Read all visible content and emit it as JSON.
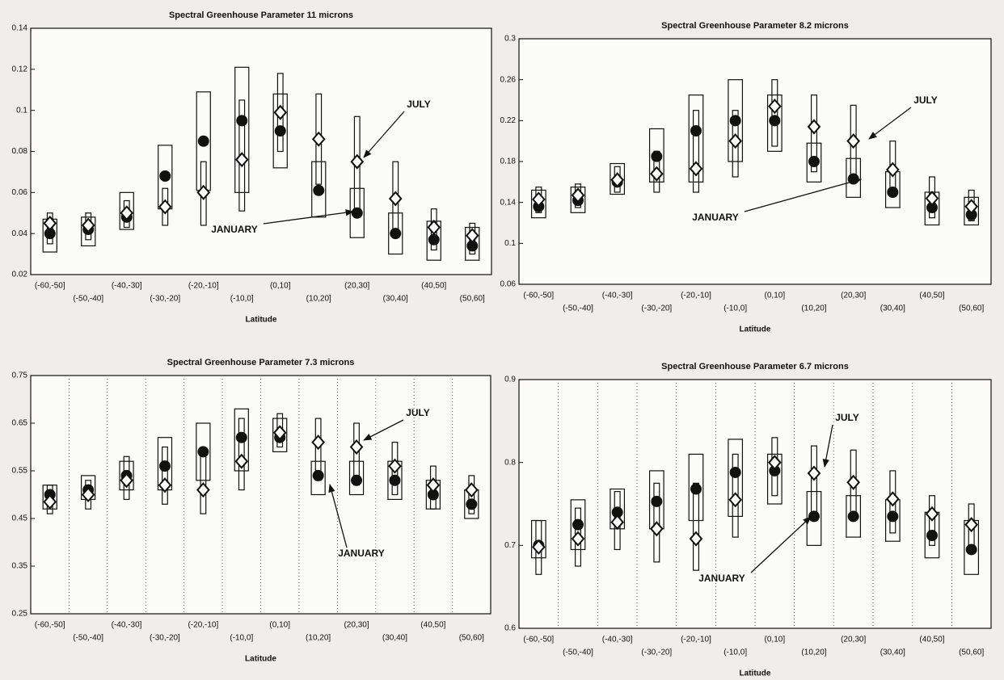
{
  "chart_data": [
    {
      "type": "box",
      "title": "Spectral Greenhouse Parameter 11 microns",
      "xlabel": "Latitude",
      "categories": [
        "(-60,-50]",
        "(-50,-40]",
        "(-40,-30]",
        "(-30,-20]",
        "(-20,-10]",
        "(-10,0]",
        "(0,10]",
        "(10,20]",
        "(20,30]",
        "(30,40]",
        "(40,50]",
        "(50,60]"
      ],
      "ylim": [
        0.02,
        0.14
      ],
      "yticks": [
        0.02,
        0.04,
        0.06,
        0.08,
        0.1,
        0.12,
        0.14
      ],
      "grid": false,
      "series": [
        {
          "name": "JANUARY",
          "color": "#111111",
          "marker": "circle",
          "values": [
            0.04,
            0.042,
            0.048,
            0.068,
            0.085,
            0.095,
            0.09,
            0.061,
            0.05,
            0.04,
            0.037,
            0.034
          ],
          "low": [
            0.031,
            0.034,
            0.042,
            0.052,
            0.061,
            0.06,
            0.072,
            0.048,
            0.038,
            0.03,
            0.027,
            0.027
          ],
          "high": [
            0.047,
            0.048,
            0.06,
            0.083,
            0.109,
            0.121,
            0.108,
            0.075,
            0.062,
            0.05,
            0.046,
            0.043
          ]
        },
        {
          "name": "JULY",
          "color": "#ffffff",
          "marker": "diamond",
          "values": [
            0.045,
            0.044,
            0.05,
            0.053,
            0.06,
            0.076,
            0.099,
            0.086,
            0.075,
            0.057,
            0.043,
            0.039
          ],
          "low": [
            0.035,
            0.037,
            0.043,
            0.044,
            0.044,
            0.051,
            0.08,
            0.064,
            0.05,
            0.038,
            0.032,
            0.03
          ],
          "high": [
            0.05,
            0.05,
            0.056,
            0.062,
            0.075,
            0.105,
            0.118,
            0.108,
            0.097,
            0.075,
            0.052,
            0.045
          ]
        }
      ]
    },
    {
      "type": "box",
      "title": "Spectral Greenhouse Parameter 8.2 microns",
      "xlabel": "Latitude",
      "categories": [
        "(-60,-50]",
        "(-50,-40]",
        "(-40,-30]",
        "(-30,-20]",
        "(-20,-10]",
        "(-10,0]",
        "(0,10]",
        "(10,20]",
        "(20,30]",
        "(30,40]",
        "(40,50]",
        "(50,60]"
      ],
      "ylim": [
        0.06,
        0.3
      ],
      "yticks": [
        0.06,
        0.1,
        0.14,
        0.18,
        0.22,
        0.26,
        0.3
      ],
      "grid": false,
      "series": [
        {
          "name": "JANUARY",
          "color": "#111111",
          "marker": "circle",
          "values": [
            0.136,
            0.142,
            0.16,
            0.185,
            0.21,
            0.22,
            0.22,
            0.18,
            0.163,
            0.15,
            0.135,
            0.128
          ],
          "low": [
            0.125,
            0.13,
            0.148,
            0.16,
            0.16,
            0.18,
            0.19,
            0.16,
            0.145,
            0.135,
            0.118,
            0.118
          ],
          "high": [
            0.152,
            0.155,
            0.178,
            0.212,
            0.245,
            0.26,
            0.245,
            0.198,
            0.183,
            0.17,
            0.15,
            0.145
          ]
        },
        {
          "name": "JULY",
          "color": "#ffffff",
          "marker": "diamond",
          "values": [
            0.143,
            0.147,
            0.162,
            0.168,
            0.173,
            0.2,
            0.234,
            0.214,
            0.2,
            0.172,
            0.144,
            0.136
          ],
          "low": [
            0.13,
            0.135,
            0.15,
            0.15,
            0.15,
            0.165,
            0.195,
            0.17,
            0.16,
            0.15,
            0.125,
            0.122
          ],
          "high": [
            0.155,
            0.158,
            0.175,
            0.19,
            0.23,
            0.23,
            0.26,
            0.245,
            0.235,
            0.2,
            0.165,
            0.152
          ]
        }
      ]
    },
    {
      "type": "box",
      "title": "Spectral Greenhouse Parameter 7.3 microns",
      "xlabel": "Latitude",
      "categories": [
        "(-60,-50]",
        "(-50,-40]",
        "(-40,-30]",
        "(-30,-20]",
        "(-20,-10]",
        "(-10,0]",
        "(0,10]",
        "(10,20]",
        "(20,30]",
        "(30,40]",
        "(40,50]",
        "(50,60]"
      ],
      "ylim": [
        0.25,
        0.75
      ],
      "yticks": [
        0.25,
        0.35,
        0.45,
        0.55,
        0.65,
        0.75
      ],
      "grid": true,
      "series": [
        {
          "name": "JANUARY",
          "color": "#111111",
          "marker": "circle",
          "values": [
            0.5,
            0.51,
            0.54,
            0.56,
            0.59,
            0.62,
            0.62,
            0.54,
            0.53,
            0.53,
            0.5,
            0.48
          ],
          "low": [
            0.47,
            0.49,
            0.51,
            0.51,
            0.53,
            0.55,
            0.59,
            0.5,
            0.5,
            0.49,
            0.47,
            0.45
          ],
          "high": [
            0.52,
            0.54,
            0.57,
            0.62,
            0.65,
            0.68,
            0.66,
            0.57,
            0.57,
            0.57,
            0.53,
            0.51
          ]
        },
        {
          "name": "JULY",
          "color": "#ffffff",
          "marker": "diamond",
          "values": [
            0.485,
            0.5,
            0.53,
            0.52,
            0.51,
            0.57,
            0.63,
            0.61,
            0.6,
            0.56,
            0.52,
            0.51
          ],
          "low": [
            0.46,
            0.47,
            0.49,
            0.48,
            0.46,
            0.51,
            0.6,
            0.53,
            0.52,
            0.5,
            0.47,
            0.46
          ],
          "high": [
            0.52,
            0.53,
            0.58,
            0.6,
            0.59,
            0.66,
            0.67,
            0.66,
            0.65,
            0.61,
            0.56,
            0.54
          ]
        }
      ]
    },
    {
      "type": "box",
      "title": "Spectral Greenhouse Parameter 6.7 microns",
      "xlabel": "Latitude",
      "categories": [
        "(-60,-50]",
        "(-50,-40]",
        "(-40,-30]",
        "(-30,-20]",
        "(-20,-10]",
        "(-10,0]",
        "(0,10]",
        "(10,20]",
        "(20,30]",
        "(30,40]",
        "(40,50]",
        "(50,60]"
      ],
      "ylim": [
        0.6,
        0.9
      ],
      "yticks": [
        0.6,
        0.7,
        0.8,
        0.9
      ],
      "grid": true,
      "series": [
        {
          "name": "JANUARY",
          "color": "#111111",
          "marker": "circle",
          "values": [
            0.7,
            0.725,
            0.74,
            0.753,
            0.768,
            0.788,
            0.79,
            0.735,
            0.735,
            0.735,
            0.712,
            0.695
          ],
          "low": [
            0.685,
            0.695,
            0.72,
            0.72,
            0.73,
            0.735,
            0.75,
            0.7,
            0.71,
            0.705,
            0.685,
            0.665
          ],
          "high": [
            0.73,
            0.755,
            0.768,
            0.79,
            0.81,
            0.828,
            0.81,
            0.765,
            0.76,
            0.755,
            0.74,
            0.73
          ]
        },
        {
          "name": "JULY",
          "color": "#ffffff",
          "marker": "diamond",
          "values": [
            0.698,
            0.708,
            0.728,
            0.72,
            0.708,
            0.755,
            0.8,
            0.787,
            0.776,
            0.756,
            0.738,
            0.725
          ],
          "low": [
            0.665,
            0.675,
            0.695,
            0.68,
            0.67,
            0.71,
            0.76,
            0.735,
            0.735,
            0.715,
            0.7,
            0.69
          ],
          "high": [
            0.73,
            0.745,
            0.765,
            0.775,
            0.775,
            0.81,
            0.83,
            0.82,
            0.815,
            0.79,
            0.76,
            0.75
          ]
        }
      ]
    }
  ]
}
